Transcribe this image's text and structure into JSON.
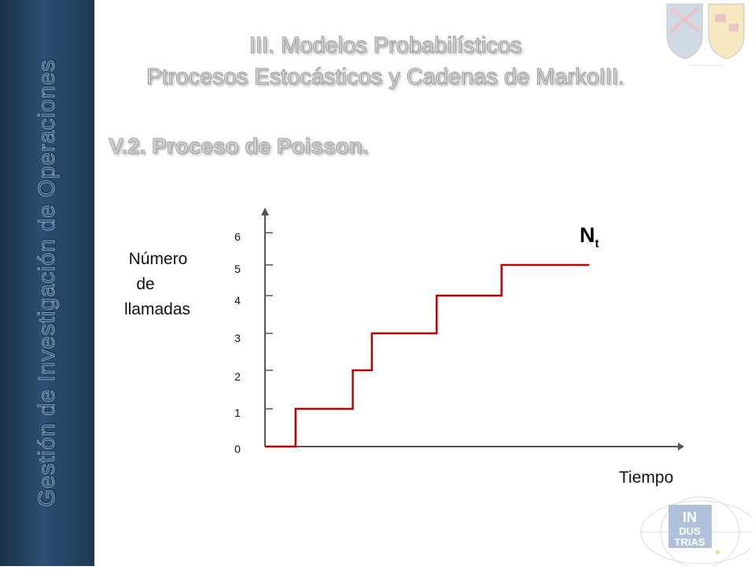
{
  "sidebar": {
    "text": "Gestión de Investigación de Operaciones"
  },
  "header": {
    "title_line1": "III.  Modelos Probabilísticos",
    "title_line2": "Ptrocesos Estocásticos y Cadenas de MarkoIII.",
    "section_title": "V.2. Proceso de Poisson."
  },
  "chart_data": {
    "type": "line",
    "step": true,
    "ylabel": [
      "Número",
      "de",
      "llamadas"
    ],
    "xlabel": "Tiempo",
    "series_label": {
      "main": "N",
      "sub": "t"
    },
    "yticks": [
      "0",
      "1",
      "2",
      "3",
      "4",
      "5",
      "6"
    ],
    "ylim": [
      0,
      6
    ],
    "series": [
      {
        "x": [
          0,
          0.8,
          0.8,
          2.3,
          2.3,
          2.8,
          2.8,
          4.5,
          4.5,
          6.2,
          6.2,
          8.5
        ],
        "y": [
          0,
          0,
          1,
          1,
          2,
          2,
          3,
          3,
          4,
          4,
          5,
          5
        ]
      }
    ],
    "colors": {
      "step_line": "#c00000",
      "axis": "#555555"
    }
  }
}
